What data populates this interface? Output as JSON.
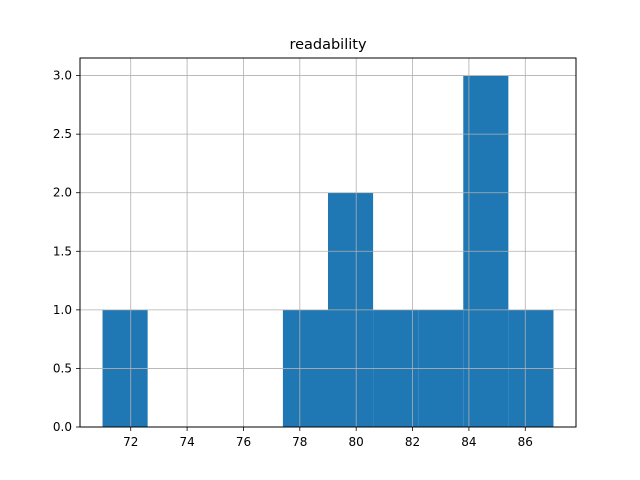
{
  "chart_data": {
    "type": "bar",
    "title": "readability",
    "xlabel": "",
    "ylabel": "",
    "bins": [
      {
        "x0": 71.0,
        "x1": 72.6,
        "count": 1
      },
      {
        "x0": 72.6,
        "x1": 74.2,
        "count": 0
      },
      {
        "x0": 74.2,
        "x1": 75.8,
        "count": 0
      },
      {
        "x0": 75.8,
        "x1": 77.4,
        "count": 0
      },
      {
        "x0": 77.4,
        "x1": 79.0,
        "count": 1
      },
      {
        "x0": 79.0,
        "x1": 80.6,
        "count": 2
      },
      {
        "x0": 80.6,
        "x1": 82.2,
        "count": 1
      },
      {
        "x0": 82.2,
        "x1": 83.8,
        "count": 1
      },
      {
        "x0": 83.8,
        "x1": 85.4,
        "count": 3
      },
      {
        "x0": 85.4,
        "x1": 87.0,
        "count": 1
      }
    ],
    "xlim": [
      70.2,
      87.8
    ],
    "ylim": [
      0,
      3.15
    ],
    "xticks": [
      72,
      74,
      76,
      78,
      80,
      82,
      84,
      86
    ],
    "yticks": [
      0.0,
      0.5,
      1.0,
      1.5,
      2.0,
      2.5,
      3.0
    ],
    "xtick_labels": [
      "72",
      "74",
      "76",
      "78",
      "80",
      "82",
      "84",
      "86"
    ],
    "ytick_labels": [
      "0.0",
      "0.5",
      "1.0",
      "1.5",
      "2.0",
      "2.5",
      "3.0"
    ],
    "grid": true,
    "bar_color": "#1f77b4",
    "grid_color": "#b0b0b0"
  }
}
